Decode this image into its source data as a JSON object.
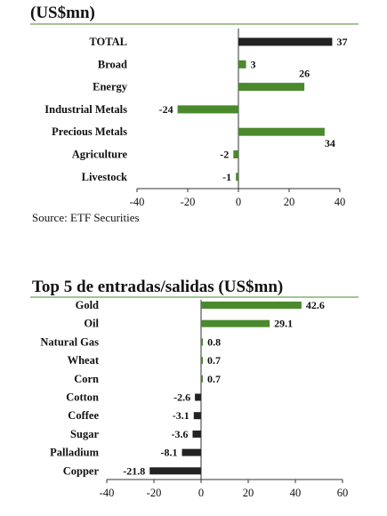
{
  "source": "Source: ETF Securities",
  "colors": {
    "positive": "#4a8a2c",
    "negative": "#222222",
    "rule": "#4a8a2c",
    "axis": "#333333"
  },
  "chart_data": [
    {
      "type": "bar",
      "orientation": "horizontal",
      "title": "(US$mn)",
      "categories": [
        "TOTAL",
        "Broad",
        "Energy",
        "Industrial Metals",
        "Precious Metals",
        "Agriculture",
        "Livestock"
      ],
      "values": [
        37,
        3,
        26,
        -24,
        34,
        -2,
        -1
      ],
      "value_labels": [
        "37",
        "3",
        "26",
        "-24",
        "34",
        "-2",
        "-1"
      ],
      "bar_colors": [
        "#222222",
        "#4a8a2c",
        "#4a8a2c",
        "#4a8a2c",
        "#4a8a2c",
        "#4a8a2c",
        "#4a8a2c"
      ],
      "xlim": [
        -40,
        40
      ],
      "xticks": [
        "-40",
        "-20",
        "0",
        "20",
        "40"
      ],
      "grid": false
    },
    {
      "type": "bar",
      "orientation": "horizontal",
      "title": "Top 5 de entradas/salidas (US$mn)",
      "categories": [
        "Gold",
        "Oil",
        "Natural Gas",
        "Wheat",
        "Corn",
        "Cotton",
        "Coffee",
        "Sugar",
        "Palladium",
        "Copper"
      ],
      "values": [
        42.6,
        29.1,
        0.8,
        0.7,
        0.7,
        -2.6,
        -3.1,
        -3.6,
        -8.1,
        -21.8
      ],
      "value_labels": [
        "42.6",
        "29.1",
        "0.8",
        "0.7",
        "0.7",
        "-2.6",
        "-3.1",
        "-3.6",
        "-8.1",
        "-21.8"
      ],
      "bar_colors": [
        "#4a8a2c",
        "#4a8a2c",
        "#4a8a2c",
        "#4a8a2c",
        "#4a8a2c",
        "#222222",
        "#222222",
        "#222222",
        "#222222",
        "#222222"
      ],
      "xlim": [
        -40,
        60
      ],
      "xticks": [
        "-40",
        "-20",
        "0",
        "20",
        "40",
        "60"
      ],
      "grid": false
    }
  ]
}
